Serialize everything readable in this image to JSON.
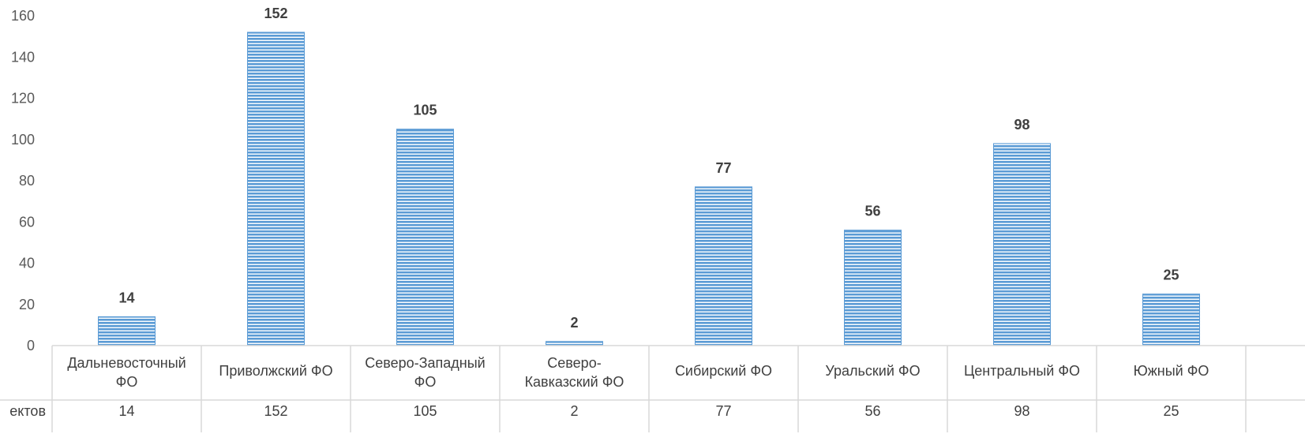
{
  "chart_data": {
    "type": "bar",
    "categories": [
      [
        "Дальневосточный",
        "ФО"
      ],
      [
        "Приволжский ФО"
      ],
      [
        "Северо-Западный",
        "ФО"
      ],
      [
        "Северо-",
        "Кавказский ФО"
      ],
      [
        "Сибирский ФО"
      ],
      [
        "Уральский ФО"
      ],
      [
        "Центральный ФО"
      ],
      [
        "Южный ФО"
      ]
    ],
    "series": [
      {
        "name": "ектов",
        "values": [
          14,
          152,
          105,
          2,
          77,
          56,
          98,
          25
        ]
      }
    ],
    "ylim": [
      0,
      160
    ],
    "yticks": [
      0,
      20,
      40,
      60,
      80,
      100,
      120,
      140,
      160
    ],
    "data_labels": true,
    "data_table": true,
    "grid": false,
    "colors": {
      "bar_fill": "#5b9bd5",
      "bar_stripe": "#ffffff",
      "axis": "#d9d9d9",
      "text": "#404040"
    }
  }
}
